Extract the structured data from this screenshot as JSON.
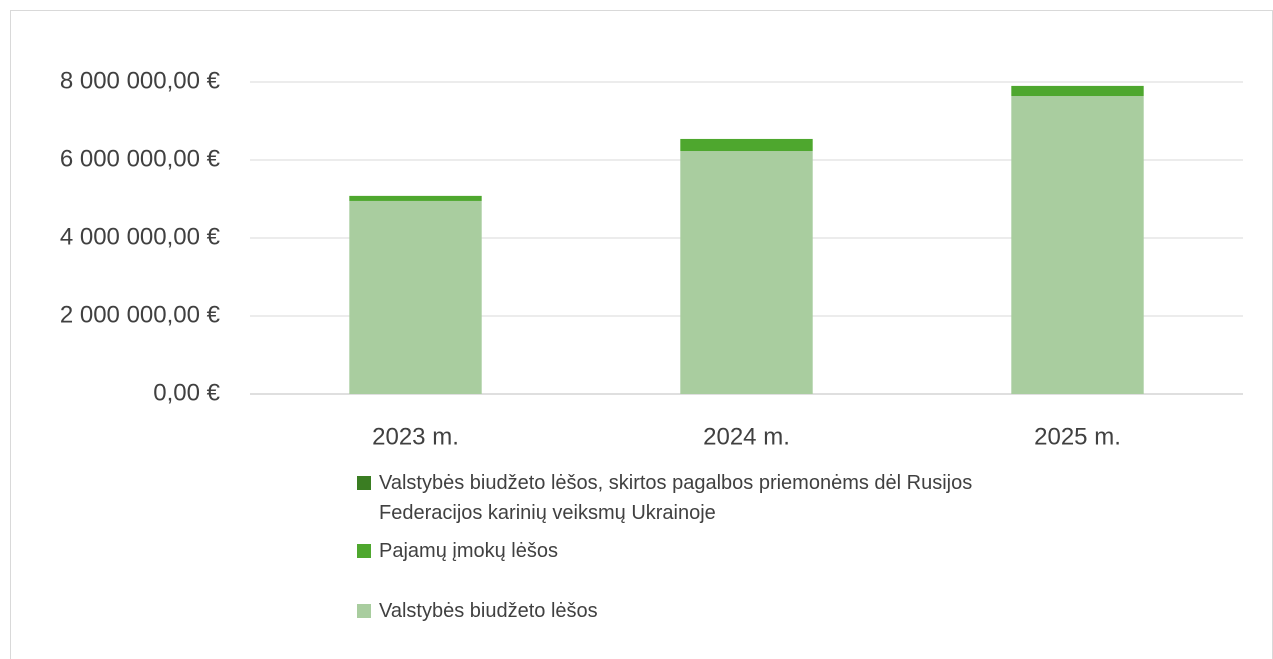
{
  "chart_data": {
    "type": "stacked_bar",
    "categories": [
      "2023 m.",
      "2024 m.",
      "2025 m."
    ],
    "series": [
      {
        "name": "Valstybės biudžeto lėšos, skirtos pagalbos priemonėms dėl Rusijos Federacijos karinių veiksmų Ukrainoje",
        "color": "#3a7d22",
        "values": [
          0,
          0,
          0
        ]
      },
      {
        "name": "Pajamų įmokų lėšos",
        "color": "#4ea72e",
        "values": [
          130000,
          310000,
          260000
        ]
      },
      {
        "name": "Valstybės biudžeto lėšos",
        "color": "#a9cd9f",
        "values": [
          4950000,
          6230000,
          7640000
        ]
      }
    ],
    "ylim": [
      0,
      8000000
    ],
    "yticks": [
      {
        "value": 0,
        "label": "0,00 €"
      },
      {
        "value": 2000000,
        "label": "2 000 000,00 €"
      },
      {
        "value": 4000000,
        "label": "4 000 000,00 €"
      },
      {
        "value": 6000000,
        "label": "6 000 000,00 €"
      },
      {
        "value": 8000000,
        "label": "8 000 000,00 €"
      }
    ],
    "grid": true
  }
}
